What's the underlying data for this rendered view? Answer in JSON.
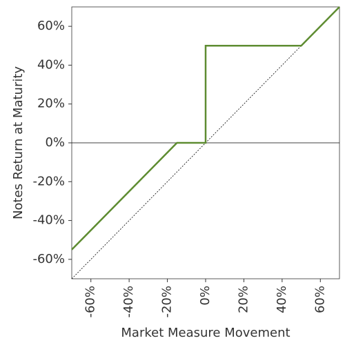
{
  "chart_data": {
    "type": "line",
    "x_label": "Market Measure Movement",
    "y_label": "Notes Return at Maturity",
    "xlim": [
      -70,
      70
    ],
    "ylim": [
      -70,
      70
    ],
    "xticks": [
      {
        "value": -60,
        "label": "-60%"
      },
      {
        "value": -40,
        "label": "-40%"
      },
      {
        "value": -20,
        "label": "-20%"
      },
      {
        "value": 0,
        "label": "0%"
      },
      {
        "value": 20,
        "label": "20%"
      },
      {
        "value": 40,
        "label": "40%"
      },
      {
        "value": 60,
        "label": "60%"
      }
    ],
    "yticks": [
      {
        "value": -60,
        "label": "-60%"
      },
      {
        "value": -40,
        "label": "-40%"
      },
      {
        "value": -20,
        "label": "-20%"
      },
      {
        "value": 0,
        "label": "0%"
      },
      {
        "value": 20,
        "label": "20%"
      },
      {
        "value": 40,
        "label": "40%"
      },
      {
        "value": 60,
        "label": "60%"
      }
    ],
    "grid": false,
    "series": [
      {
        "color": "#5e8c31",
        "x": [
          -70,
          -15,
          0,
          0,
          50,
          70
        ],
        "values": [
          -55,
          0,
          0,
          50,
          50,
          70
        ]
      }
    ],
    "reference_line": {
      "color": "#000000",
      "x": [
        -70,
        70
      ],
      "values": [
        -70,
        70
      ]
    }
  }
}
